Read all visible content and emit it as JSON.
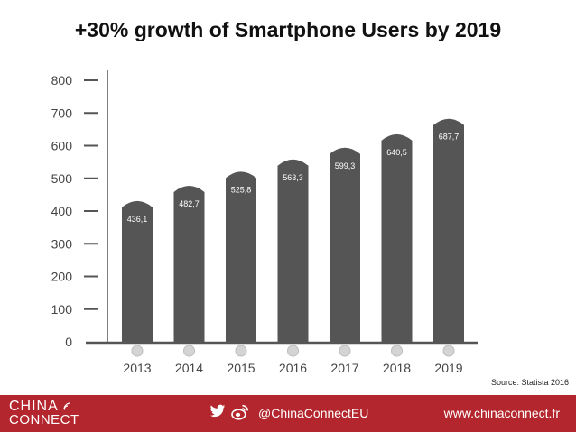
{
  "title": "+30% growth of Smartphone Users by 2019",
  "source": "Source: Statista 2016",
  "colors": {
    "bar": "#555555",
    "axis": "#555555",
    "footer": "#b3262d",
    "marker": "#d4d4d4"
  },
  "chart_data": {
    "type": "bar",
    "title": "+30% growth of Smartphone Users by 2019",
    "categories": [
      "2013",
      "2014",
      "2015",
      "2016",
      "2017",
      "2018",
      "2019"
    ],
    "values": [
      436.1,
      482.7,
      525.8,
      563.3,
      599.3,
      640.5,
      687.7
    ],
    "value_labels": [
      "436,1",
      "482,7",
      "525,8",
      "563,3",
      "599,3",
      "640,5",
      "687,7"
    ],
    "y_ticks": [
      0,
      100,
      200,
      300,
      400,
      500,
      600,
      700,
      800
    ],
    "ylim": [
      0,
      800
    ],
    "xlabel": "",
    "ylabel": "",
    "grid": false,
    "legend": "none"
  },
  "footer": {
    "logo_line1": "CHINA",
    "logo_line2": "CONNECT",
    "twitter_icon": "twitter-icon",
    "weibo_icon": "weibo-icon",
    "handle": "@ChinaConnectEU",
    "website": "www.chinaconnect.fr"
  }
}
